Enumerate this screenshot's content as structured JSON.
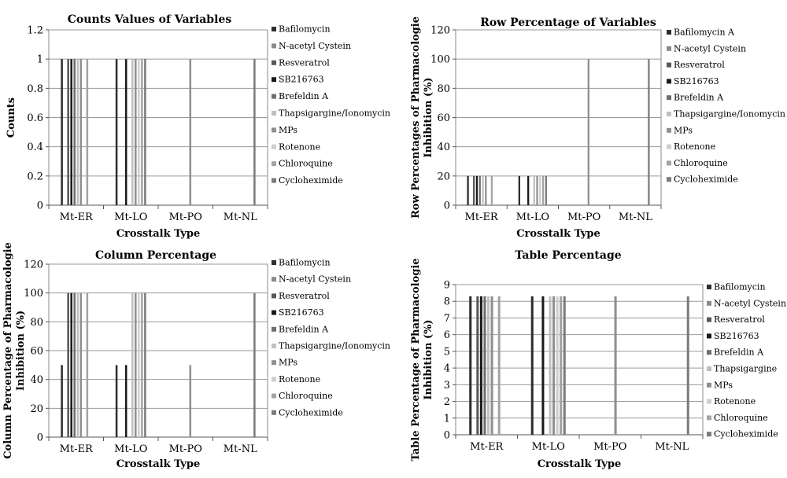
{
  "series_colors": [
    "#2e2e2e",
    "#8a8a8a",
    "#575757",
    "#1a1a1a",
    "#6e6e6e",
    "#c0c0c0",
    "#8f8f8f",
    "#cdcdcd",
    "#a3a3a3",
    "#7b7b7b"
  ],
  "chart_data": [
    {
      "type": "bar",
      "title": "Counts Values of Variables",
      "xlabel": "Crosstalk Type",
      "ylabel": "Counts",
      "categories": [
        "Mt-ER",
        "Mt-LO",
        "Mt-PO",
        "Mt-NL"
      ],
      "ylim": [
        0,
        1.2
      ],
      "yticks": [
        "0",
        "0.2",
        "0.4",
        "0.6",
        "0.8",
        "1",
        "1.2"
      ],
      "grid": true,
      "legend_position": "right",
      "series": [
        {
          "name": "Bafilomycin",
          "values": [
            1,
            1,
            null,
            null
          ]
        },
        {
          "name": "N-acetyl Cystein",
          "values": [
            null,
            null,
            null,
            null
          ]
        },
        {
          "name": "Resveratrol",
          "values": [
            1,
            null,
            null,
            null
          ]
        },
        {
          "name": "SB216763",
          "values": [
            1,
            1,
            null,
            null
          ]
        },
        {
          "name": "Brefeldin A",
          "values": [
            1,
            null,
            null,
            null
          ]
        },
        {
          "name": "Thapsigargine/Ionomycin",
          "values": [
            1,
            1,
            null,
            null
          ]
        },
        {
          "name": "MPs",
          "values": [
            1,
            1,
            1,
            null
          ]
        },
        {
          "name": "Rotenone",
          "values": [
            null,
            1,
            null,
            null
          ]
        },
        {
          "name": "Chloroquine",
          "values": [
            1,
            1,
            null,
            null
          ]
        },
        {
          "name": "Cycloheximide",
          "values": [
            null,
            1,
            null,
            1
          ]
        }
      ]
    },
    {
      "type": "bar",
      "title": "Row Percentage of Variables",
      "xlabel": "Crosstalk Type",
      "ylabel_lines": [
        "Row Percentages of Pharmacologie",
        "Inhibition (%)"
      ],
      "categories": [
        "Mt-ER",
        "Mt-LO",
        "Mt-PO",
        "Mt-NL"
      ],
      "ylim": [
        0,
        120
      ],
      "yticks": [
        "0",
        "20",
        "40",
        "60",
        "80",
        "100",
        "120"
      ],
      "grid": true,
      "legend_position": "right",
      "series": [
        {
          "name": "Bafilomycin A",
          "values": [
            20,
            20,
            null,
            null
          ]
        },
        {
          "name": "N-acetyl Cystein",
          "values": [
            null,
            null,
            null,
            null
          ]
        },
        {
          "name": "Resveratrol",
          "values": [
            20,
            null,
            null,
            null
          ]
        },
        {
          "name": "SB216763",
          "values": [
            20,
            20,
            null,
            null
          ]
        },
        {
          "name": "Brefeldin A",
          "values": [
            20,
            null,
            null,
            null
          ]
        },
        {
          "name": "Thapsigargine/Ionomycin",
          "values": [
            20,
            20,
            null,
            null
          ]
        },
        {
          "name": "MPs",
          "values": [
            20,
            20,
            100,
            null
          ]
        },
        {
          "name": "Rotenone",
          "values": [
            null,
            20,
            null,
            null
          ]
        },
        {
          "name": "Chloroquine",
          "values": [
            20,
            20,
            null,
            null
          ]
        },
        {
          "name": "Cycloheximide",
          "values": [
            null,
            20,
            null,
            100
          ]
        }
      ]
    },
    {
      "type": "bar",
      "title": "Column Percentage",
      "xlabel": "Crosstalk Type",
      "ylabel_lines": [
        "Column Percentage of Pharmacologie",
        "Inhibition (%)"
      ],
      "categories": [
        "Mt-ER",
        "Mt-LO",
        "Mt-PO",
        "Mt-NL"
      ],
      "ylim": [
        0,
        120
      ],
      "yticks": [
        "0",
        "20",
        "40",
        "60",
        "80",
        "100",
        "120"
      ],
      "grid": true,
      "legend_position": "right",
      "series": [
        {
          "name": "Bafilomycin",
          "values": [
            50,
            50,
            null,
            null
          ]
        },
        {
          "name": "N-acetyl Cystein",
          "values": [
            null,
            null,
            null,
            null
          ]
        },
        {
          "name": "Resveratrol",
          "values": [
            100,
            null,
            null,
            null
          ]
        },
        {
          "name": "SB216763",
          "values": [
            100,
            50,
            null,
            null
          ]
        },
        {
          "name": "Brefeldin A",
          "values": [
            100,
            null,
            null,
            null
          ]
        },
        {
          "name": "Thapsigargine/Ionomycin",
          "values": [
            100,
            100,
            null,
            null
          ]
        },
        {
          "name": "MPs",
          "values": [
            100,
            100,
            50,
            null
          ]
        },
        {
          "name": "Rotenone",
          "values": [
            null,
            100,
            null,
            null
          ]
        },
        {
          "name": "Chloroquine",
          "values": [
            100,
            100,
            null,
            null
          ]
        },
        {
          "name": "Cycloheximide",
          "values": [
            null,
            100,
            null,
            100
          ]
        }
      ]
    },
    {
      "type": "bar",
      "title": "Table Percentage",
      "xlabel": "Crosstalk Type",
      "ylabel_lines": [
        "Table Percentage of Pharmacologie",
        "Inhibition (%)"
      ],
      "categories": [
        "Mt-ER",
        "Mt-LO",
        "Mt-PO",
        "Mt-NL"
      ],
      "ylim": [
        0,
        9
      ],
      "yticks": [
        "0",
        "1",
        "2",
        "3",
        "4",
        "5",
        "6",
        "7",
        "8",
        "9"
      ],
      "grid": true,
      "legend_position": "right",
      "series": [
        {
          "name": "Bafilomycin",
          "values": [
            8.3,
            8.3,
            null,
            null
          ]
        },
        {
          "name": "N-acetyl Cystein",
          "values": [
            null,
            null,
            null,
            null
          ]
        },
        {
          "name": "Resveratrol",
          "values": [
            8.3,
            null,
            null,
            null
          ]
        },
        {
          "name": "SB216763",
          "values": [
            8.3,
            8.3,
            null,
            null
          ]
        },
        {
          "name": "Brefeldin A",
          "values": [
            8.3,
            null,
            null,
            null
          ]
        },
        {
          "name": "Thapsigargine",
          "values": [
            8.3,
            8.3,
            null,
            null
          ]
        },
        {
          "name": "MPs",
          "values": [
            8.3,
            8.3,
            8.3,
            null
          ]
        },
        {
          "name": "Rotenone",
          "values": [
            null,
            8.3,
            null,
            null
          ]
        },
        {
          "name": "Chloroquine",
          "values": [
            8.3,
            8.3,
            null,
            null
          ]
        },
        {
          "name": "Cycloheximide",
          "values": [
            null,
            8.3,
            null,
            8.3
          ]
        }
      ]
    }
  ]
}
